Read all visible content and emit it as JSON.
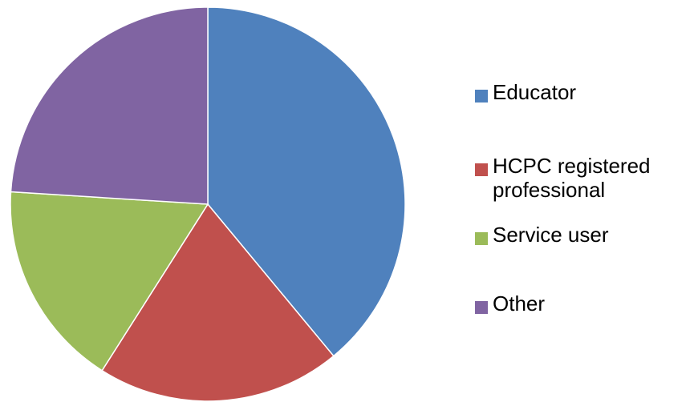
{
  "chart_data": {
    "type": "pie",
    "title": "",
    "categories": [
      "Educator",
      "HCPC registered professional",
      "Service user",
      "Other"
    ],
    "values": [
      39,
      20,
      17,
      24
    ],
    "colors": [
      "#4f81bd",
      "#c0504d",
      "#9bbb59",
      "#8064a2"
    ],
    "start_angle_deg": 0,
    "direction": "clockwise",
    "legend_position": "right"
  }
}
